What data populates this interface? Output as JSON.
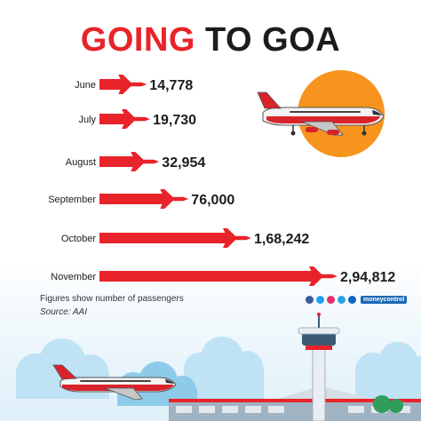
{
  "header": {
    "title_red": "GOING",
    "title_dark": "TO GOA"
  },
  "chart_data": {
    "type": "bar",
    "orientation": "horizontal",
    "categories": [
      "June",
      "July",
      "August",
      "September",
      "October",
      "November"
    ],
    "values": [
      14778,
      19730,
      32954,
      76000,
      168242,
      294812
    ],
    "value_labels": [
      "14,778",
      "19,730",
      "32,954",
      "76,000",
      "1,68,242",
      "2,94,812"
    ],
    "title": "GOING TO GOA",
    "xlabel": "",
    "ylabel": "",
    "xlim": [
      0,
      294812
    ],
    "grid": false,
    "legend": "none",
    "bar_color": "#e8232a"
  },
  "footnotes": {
    "note": "Figures show number of passengers",
    "source": "Source: AAI"
  },
  "branding": {
    "name": "moneycontrol",
    "icons": [
      "facebook-icon",
      "twitter-icon",
      "instagram-icon",
      "telegram-icon",
      "linkedin-icon"
    ]
  },
  "colors": {
    "accent": "#e8232a",
    "sun": "#f7941d",
    "sky": "#6fb9e3",
    "dark": "#1c1c1c"
  }
}
